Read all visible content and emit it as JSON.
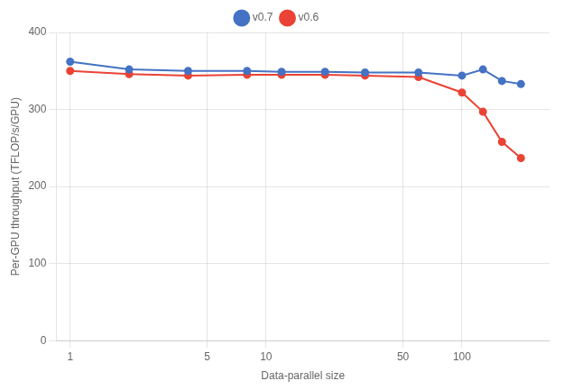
{
  "chart_data": {
    "type": "line",
    "x": [
      1,
      2,
      4,
      8,
      12,
      20,
      32,
      60,
      100,
      128,
      160,
      200
    ],
    "series": [
      {
        "name": "v0.7",
        "color": "#4472C4",
        "marker": "circle",
        "values": [
          362,
          352,
          350,
          350,
          349,
          349,
          348,
          348,
          344,
          352,
          337,
          333
        ]
      },
      {
        "name": "v0.6",
        "color": "#EA4335",
        "marker": "circle",
        "values": [
          350,
          346,
          344,
          345,
          345,
          345,
          344,
          342,
          322,
          297,
          258,
          237
        ]
      }
    ],
    "xlabel": "Data-parallel size",
    "ylabel": "Per-GPU throughput (TFLOP/s/GPU)",
    "log": "x",
    "xlim": [
      0.85,
      280
    ],
    "xticks": [
      1,
      5,
      10,
      50,
      100
    ],
    "ylim": [
      0,
      400
    ],
    "yticks": [
      0,
      100,
      200,
      300,
      400
    ],
    "grid": true,
    "legend": "top"
  }
}
